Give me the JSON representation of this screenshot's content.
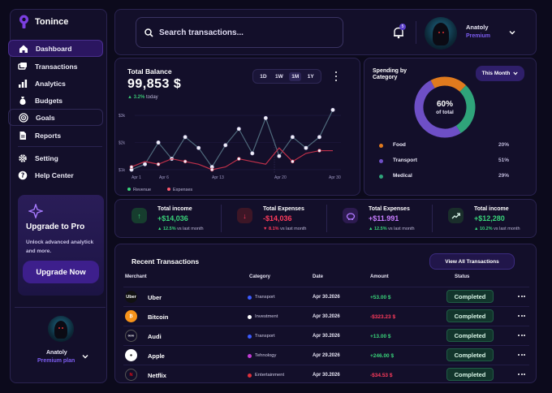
{
  "app": {
    "name": "Tonince"
  },
  "sidebar": {
    "nav": [
      {
        "label": "Dashboard",
        "icon": "home-icon"
      },
      {
        "label": "Transactions",
        "icon": "transactions-icon"
      },
      {
        "label": "Analytics",
        "icon": "bar-chart-icon"
      },
      {
        "label": "Budgets",
        "icon": "money-bag-icon"
      },
      {
        "label": "Goals",
        "icon": "target-icon"
      },
      {
        "label": "Reports",
        "icon": "report-icon"
      }
    ],
    "secondary": [
      {
        "label": "Setting",
        "icon": "gear-icon"
      },
      {
        "label": "Help Center",
        "icon": "help-icon"
      }
    ],
    "upgrade": {
      "title": "Upgrade to Pro",
      "description": "Unlock advanced analytick and more.",
      "button": "Upgrade Now"
    },
    "profile": {
      "name": "Anatoly",
      "plan": "Premium plan"
    }
  },
  "topbar": {
    "search_placeholder": "Search transactions...",
    "notification_count": "5",
    "user": {
      "name": "Anatoly",
      "plan": "Premium"
    }
  },
  "balance": {
    "title": "Total Balance",
    "value": "99,853 $",
    "change": "3.2%",
    "change_period": "today",
    "ranges": [
      "1D",
      "1W",
      "1M",
      "1Y"
    ],
    "selected_range": "1M"
  },
  "chart_data": {
    "type": "line",
    "x_ticks": [
      "Apr 1",
      "Apr 6",
      "Apr 13",
      "Apr 20",
      "Apr 30"
    ],
    "y_ticks": [
      "$1k",
      "$2k",
      "$3k"
    ],
    "ylim": [
      0.7,
      3.3
    ],
    "series": [
      {
        "name": "Revenue",
        "color": "#4f6a7c",
        "values": [
          1.0,
          1.2,
          2.0,
          1.4,
          2.2,
          1.8,
          1.1,
          1.9,
          2.5,
          1.6,
          2.9,
          1.5,
          2.2,
          1.8,
          2.2,
          3.2
        ]
      },
      {
        "name": "Expenses",
        "color": "#c0304a",
        "values": [
          1.1,
          1.3,
          1.2,
          1.4,
          1.3,
          1.2,
          1.0,
          1.1,
          1.4,
          1.3,
          1.2,
          1.8,
          1.3,
          1.6,
          1.7,
          1.7
        ]
      }
    ]
  },
  "spending": {
    "title": "Spending by Category",
    "period": "This Month",
    "center_value": "60%",
    "center_label": "of total",
    "categories": [
      {
        "name": "Food",
        "percent": "20%",
        "color": "#e07a1e"
      },
      {
        "name": "Transport",
        "percent": "51%",
        "color": "#6e4fc6"
      },
      {
        "name": "Medical",
        "percent": "29%",
        "color": "#2fa37a"
      }
    ]
  },
  "stats": [
    {
      "label": "Total income",
      "value": "+$14,036",
      "change": "12.5%",
      "period": "vs last month",
      "value_color": "#39d47a",
      "change_color": "#39d47a",
      "icon": "arrow-up-icon",
      "icon_bg": "#163d2e",
      "icon_color": "#39d47a"
    },
    {
      "label": "Total Expenses",
      "value": "-$14,036",
      "change": "8.1%",
      "period": "vs last month",
      "value_color": "#ff3b5c",
      "change_color": "#ff3b5c",
      "icon": "arrow-down-icon",
      "icon_bg": "#3d1626",
      "icon_color": "#ff3b5c"
    },
    {
      "label": "Total Expenses",
      "value": "+$11.991",
      "change": "12.5%",
      "period": "vs last month",
      "value_color": "#c77dff",
      "change_color": "#39d47a",
      "icon": "piggy-bank-icon",
      "icon_bg": "#2c1a4f",
      "icon_color": "#b07aff"
    },
    {
      "label": "Total income",
      "value": "+$12,280",
      "change": "10.2%",
      "period": "vs last month",
      "value_color": "#39d47a",
      "change_color": "#39d47a",
      "icon": "trend-up-icon",
      "icon_bg": "#1a2e2b",
      "icon_color": "#d7f0e6"
    }
  ],
  "recent": {
    "title": "Recent Transactions",
    "view_all": "View All Transactions",
    "columns": [
      "Merchant",
      "Category",
      "Date",
      "Amount",
      "Status"
    ],
    "rows": [
      {
        "merchant": "Uber",
        "logo_text": "Uber",
        "logo_bg": "#111111",
        "logo_color": "#ffffff",
        "category": "Transport",
        "cat_color": "#3b5bff",
        "date": "Apr 30.2026",
        "amount": "+53.00 $",
        "amount_color": "#39d47a",
        "status": "Completed"
      },
      {
        "merchant": "Bitcoin",
        "logo_text": "₿",
        "logo_bg": "#f7931a",
        "logo_color": "#ffffff",
        "category": "Investment",
        "cat_color": "#ffffff",
        "date": "Apr 30.2026",
        "amount": "-$323.23 $",
        "amount_color": "#ff3b5c",
        "status": "Completed"
      },
      {
        "merchant": "Audi",
        "logo_text": "∞∞",
        "logo_bg": "#130f2a",
        "logo_color": "#ffffff",
        "category": "Transport",
        "cat_color": "#3b5bff",
        "date": "Apr 30.2026",
        "amount": "+13.00 $",
        "amount_color": "#39d47a",
        "status": "Completed"
      },
      {
        "merchant": "Apple",
        "logo_text": "●",
        "logo_bg": "#ffffff",
        "logo_color": "#111111",
        "category": "Tehnology",
        "cat_color": "#c23bd6",
        "date": "Apr 29.2026",
        "amount": "+246.00 $",
        "amount_color": "#39d47a",
        "status": "Completed"
      },
      {
        "merchant": "Netflix",
        "logo_text": "N",
        "logo_bg": "#130f2a",
        "logo_color": "#e50914",
        "category": "Entertainment",
        "cat_color": "#e0303a",
        "date": "Apr 30.2026",
        "amount": "-$34.53 $",
        "amount_color": "#ff3b5c",
        "status": "Completed"
      }
    ]
  }
}
